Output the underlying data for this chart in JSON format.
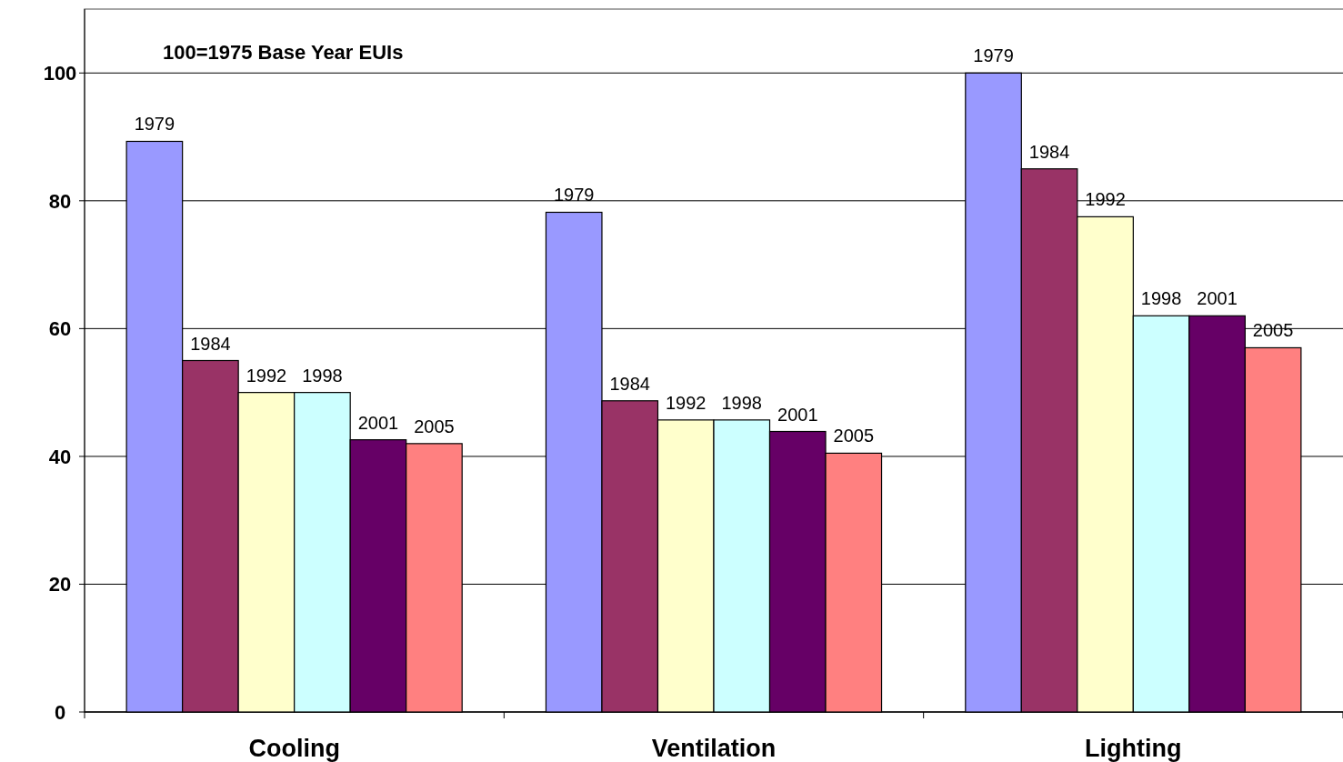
{
  "chart_data": {
    "type": "bar",
    "categories": [
      "Cooling",
      "Ventilation",
      "Lighting"
    ],
    "series": [
      {
        "name": "1979",
        "color": "#9999ff",
        "values": [
          89.3,
          78.2,
          100
        ]
      },
      {
        "name": "1984",
        "color": "#993366",
        "values": [
          55,
          48.7,
          85
        ]
      },
      {
        "name": "1992",
        "color": "#ffffcc",
        "values": [
          50,
          45.7,
          77.5
        ]
      },
      {
        "name": "1998",
        "color": "#ccffff",
        "values": [
          50,
          45.7,
          62
        ]
      },
      {
        "name": "2001",
        "color": "#660066",
        "values": [
          42.6,
          43.9,
          62
        ]
      },
      {
        "name": "2005",
        "color": "#ff8080",
        "values": [
          42,
          40.5,
          57
        ]
      }
    ],
    "ylim": [
      0,
      110
    ],
    "yticks": [
      0,
      20,
      40,
      60,
      80,
      100
    ],
    "grid": "y",
    "annotations": [
      "100=1975 Base Year EUIs"
    ]
  }
}
